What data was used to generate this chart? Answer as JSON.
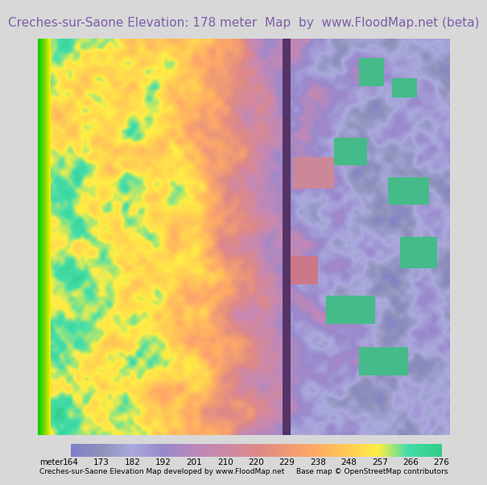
{
  "title": "Creches-sur-Saone Elevation: 178 meter  Map  by  www.FloodMap.net (beta)",
  "title_color": "#7b5ea7",
  "title_fontsize": 11.0,
  "title_bg": "#e8e4e8",
  "colorbar_values": [
    164,
    173,
    182,
    192,
    201,
    210,
    220,
    229,
    238,
    248,
    257,
    266,
    276
  ],
  "colorbar_colors": [
    "#8080cc",
    "#9999cc",
    "#aaaadd",
    "#bb99cc",
    "#cc99bb",
    "#dd99aa",
    "#ee9999",
    "#ffaa88",
    "#ffbb77",
    "#ffcc66",
    "#ffdd55",
    "#44ccaa",
    "#33bb88"
  ],
  "footer_left": "Creches-sur-Saone Elevation Map developed by www.FloodMap.net",
  "footer_right": "Base map © OpenStreetMap contributors",
  "footer_fontsize": 6.5,
  "label_fontsize": 7.5,
  "fig_width": 5.12,
  "fig_height": 5.82,
  "elevation_colors": [
    [
      164,
      "#8080cc"
    ],
    [
      173,
      "#9090bb"
    ],
    [
      182,
      "#aaaadd"
    ],
    [
      192,
      "#9988cc"
    ],
    [
      201,
      "#bb88bb"
    ],
    [
      210,
      "#cc88aa"
    ],
    [
      220,
      "#dd8888"
    ],
    [
      229,
      "#ee9977"
    ],
    [
      238,
      "#ffaa66"
    ],
    [
      248,
      "#ffcc55"
    ],
    [
      257,
      "#ffee44"
    ],
    [
      266,
      "#44ddaa"
    ],
    [
      276,
      "#33cc88"
    ]
  ]
}
